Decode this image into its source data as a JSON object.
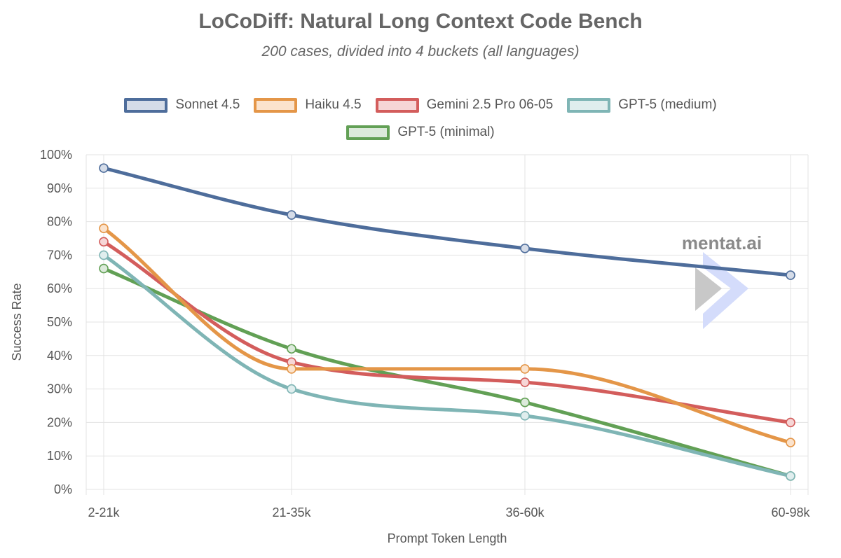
{
  "chart_data": {
    "type": "line",
    "title": "LoCoDiff: Natural Long Context Code Bench",
    "subtitle": "200 cases, divided into 4 buckets (all languages)",
    "xlabel": "Prompt Token Length",
    "ylabel": "Success Rate",
    "categories": [
      "2-21k",
      "21-35k",
      "36-60k",
      "60-98k"
    ],
    "ylim": [
      0,
      100
    ],
    "y_ticks": [
      "0%",
      "10%",
      "20%",
      "30%",
      "40%",
      "50%",
      "60%",
      "70%",
      "80%",
      "90%",
      "100%"
    ],
    "y_tick_values": [
      0,
      10,
      20,
      30,
      40,
      50,
      60,
      70,
      80,
      90,
      100
    ],
    "grid": true,
    "legend_position": "top",
    "series": [
      {
        "name": "Sonnet 4.5",
        "values": [
          96,
          82,
          72,
          64
        ],
        "color": "#4e6d9b",
        "fill": "#d5dce8"
      },
      {
        "name": "Haiku 4.5",
        "values": [
          78,
          36,
          36,
          14
        ],
        "color": "#e49648",
        "fill": "#fbe3cd"
      },
      {
        "name": "Gemini 2.5 Pro 06-05",
        "values": [
          74,
          38,
          32,
          20
        ],
        "color": "#d35d5c",
        "fill": "#f6d6d6"
      },
      {
        "name": "GPT-5 (medium)",
        "values": [
          70,
          30,
          22,
          4
        ],
        "color": "#7fb5b5",
        "fill": "#e0eeee"
      },
      {
        "name": "GPT-5 (minimal)",
        "values": [
          66,
          42,
          26,
          4
        ],
        "color": "#62a055",
        "fill": "#dceadb"
      }
    ]
  },
  "watermark": {
    "text": "mentat.ai",
    "colors": {
      "chevron_gray": "#c8c8c8",
      "chevron_blue": "#d4dcfb"
    }
  }
}
